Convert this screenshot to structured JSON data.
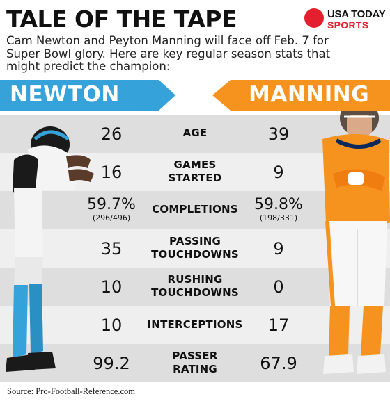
{
  "title": "TALE OF THE TAPE",
  "logo": {
    "line1": "USA TODAY",
    "line2": "SPORTS",
    "red": "#e4202e"
  },
  "intro": "Cam Newton and Peyton Manning will face off Feb. 7 for Super Bowl glory. Here are key regular season stats that might predict the champion:",
  "players": {
    "left": {
      "name": "NEWTON",
      "color": "#35a3da"
    },
    "right": {
      "name": "MANNING",
      "color": "#f6921e"
    }
  },
  "stats": [
    {
      "label_line1": "AGE",
      "label_line2": "",
      "left": "26",
      "left_sub": "",
      "right": "39",
      "right_sub": ""
    },
    {
      "label_line1": "GAMES",
      "label_line2": "STARTED",
      "left": "16",
      "left_sub": "",
      "right": "9",
      "right_sub": ""
    },
    {
      "label_line1": "COMPLETIONS",
      "label_line2": "",
      "left": "59.7%",
      "left_sub": "(296/496)",
      "right": "59.8%",
      "right_sub": "(198/331)"
    },
    {
      "label_line1": "PASSING",
      "label_line2": "TOUCHDOWNS",
      "left": "35",
      "left_sub": "",
      "right": "9",
      "right_sub": ""
    },
    {
      "label_line1": "RUSHING",
      "label_line2": "TOUCHDOWNS",
      "left": "10",
      "left_sub": "",
      "right": "0",
      "right_sub": ""
    },
    {
      "label_line1": "INTERCEPTIONS",
      "label_line2": "",
      "left": "10",
      "left_sub": "",
      "right": "17",
      "right_sub": ""
    },
    {
      "label_line1": "PASSER",
      "label_line2": "RATING",
      "left": "99.2",
      "left_sub": "",
      "right": "67.9",
      "right_sub": ""
    }
  ],
  "source": "Source: Pro-Football-Reference.com"
}
